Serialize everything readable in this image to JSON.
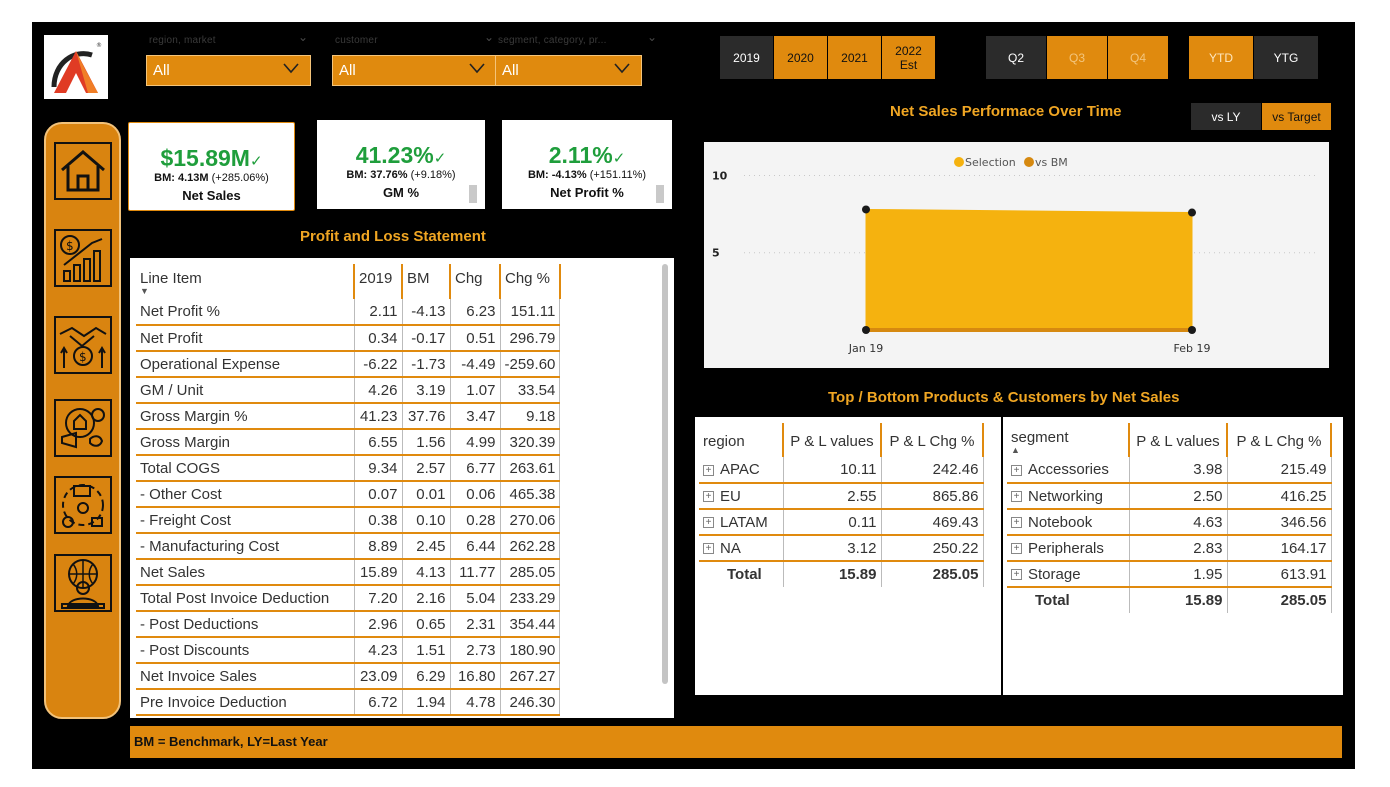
{
  "filters": [
    {
      "label": "region, market",
      "value": "All"
    },
    {
      "label": "customer",
      "value": "All"
    },
    {
      "label": "segment, category, pr...",
      "value": "All"
    }
  ],
  "years": [
    {
      "label": "2019",
      "style": "dark"
    },
    {
      "label": "2020",
      "style": "orange"
    },
    {
      "label": "2021",
      "style": "orange"
    },
    {
      "label": "2022",
      "sub": "Est",
      "style": "orange"
    }
  ],
  "quarters": [
    {
      "label": "Q2",
      "style": "dark"
    },
    {
      "label": "Q3",
      "style": "orange"
    },
    {
      "label": "Q4",
      "style": "orange"
    }
  ],
  "periods": [
    {
      "label": "YTD",
      "style": "orange"
    },
    {
      "label": "YTG",
      "style": "dark"
    }
  ],
  "kpis": [
    {
      "value": "$15.89M",
      "bm_label": "BM: 4.13M",
      "bm_change": "(+285.06%)",
      "name": "Net Sales"
    },
    {
      "value": "41.23%",
      "bm_label": "BM: 37.76%",
      "bm_change": "(+9.18%)",
      "name": "GM %"
    },
    {
      "value": "2.11%",
      "bm_label": "BM: -4.13%",
      "bm_change": "(+151.11%)",
      "name": "Net Profit %"
    }
  ],
  "pl_title": "Profit and Loss Statement",
  "pl_columns": [
    "Line Item",
    "2019",
    "BM",
    "Chg",
    "Chg %"
  ],
  "pl_rows": [
    [
      "Net Profit %",
      "2.11",
      "-4.13",
      "6.23",
      "151.11"
    ],
    [
      "Net Profit",
      "0.34",
      "-0.17",
      "0.51",
      "296.79"
    ],
    [
      "Operational Expense",
      "-6.22",
      "-1.73",
      "-4.49",
      "-259.60"
    ],
    [
      "GM / Unit",
      "4.26",
      "3.19",
      "1.07",
      "33.54"
    ],
    [
      "Gross Margin %",
      "41.23",
      "37.76",
      "3.47",
      "9.18"
    ],
    [
      "Gross Margin",
      "6.55",
      "1.56",
      "4.99",
      "320.39"
    ],
    [
      "Total COGS",
      "9.34",
      "2.57",
      "6.77",
      "263.61"
    ],
    [
      " - Other Cost",
      "0.07",
      "0.01",
      "0.06",
      "465.38"
    ],
    [
      " - Freight Cost",
      "0.38",
      "0.10",
      "0.28",
      "270.06"
    ],
    [
      " - Manufacturing Cost",
      "8.89",
      "2.45",
      "6.44",
      "262.28"
    ],
    [
      "Net Sales",
      "15.89",
      "4.13",
      "11.77",
      "285.05"
    ],
    [
      "Total Post Invoice Deduction",
      "7.20",
      "2.16",
      "5.04",
      "233.29"
    ],
    [
      " - Post Deductions",
      "2.96",
      "0.65",
      "2.31",
      "354.44"
    ],
    [
      " - Post Discounts",
      "4.23",
      "1.51",
      "2.73",
      "180.90"
    ],
    [
      "Net Invoice Sales",
      "23.09",
      "6.29",
      "16.80",
      "267.27"
    ],
    [
      "Pre Invoice Deduction",
      "6.72",
      "1.94",
      "4.78",
      "246.30"
    ]
  ],
  "chart_title": "Net Sales Performace Over Time",
  "toggles": [
    {
      "label": "vs LY",
      "style": "dark"
    },
    {
      "label": "vs Target",
      "style": "orange"
    }
  ],
  "chart_data": {
    "type": "area",
    "title": "Net Sales Performace Over Time",
    "x": [
      "Jan 19",
      "Feb 19"
    ],
    "series": [
      {
        "name": "Selection",
        "values": [
          7.8,
          7.6
        ],
        "color": "#f5b20f"
      },
      {
        "name": "vs BM",
        "values": [
          0.0,
          0.0
        ],
        "color": "#d68910"
      }
    ],
    "yticks": [
      "5",
      "10"
    ],
    "ylim": [
      0,
      11
    ],
    "legend": "top-center",
    "grid": true
  },
  "top_bottom_title": "Top / Bottom Products & Customers by Net Sales",
  "region_table": {
    "columns": [
      "region",
      "P & L values",
      "P & L Chg %"
    ],
    "rows": [
      [
        "APAC",
        "10.11",
        "242.46"
      ],
      [
        "EU",
        "2.55",
        "865.86"
      ],
      [
        "LATAM",
        "0.11",
        "469.43"
      ],
      [
        "NA",
        "3.12",
        "250.22"
      ]
    ],
    "total": [
      "Total",
      "15.89",
      "285.05"
    ]
  },
  "segment_table": {
    "columns": [
      "segment",
      "P & L values",
      "P & L Chg %"
    ],
    "rows": [
      [
        "Accessories",
        "3.98",
        "215.49"
      ],
      [
        "Networking",
        "2.50",
        "416.25"
      ],
      [
        "Notebook",
        "4.63",
        "346.56"
      ],
      [
        "Peripherals",
        "2.83",
        "164.17"
      ],
      [
        "Storage",
        "1.95",
        "613.91"
      ]
    ],
    "total": [
      "Total",
      "15.89",
      "285.05"
    ]
  },
  "footer_text": "BM = Benchmark, LY=Last Year",
  "nav_icons": [
    "home-icon",
    "finance-growth-icon",
    "handshake-money-icon",
    "marketing-icon",
    "supply-chain-icon",
    "global-executive-icon"
  ]
}
